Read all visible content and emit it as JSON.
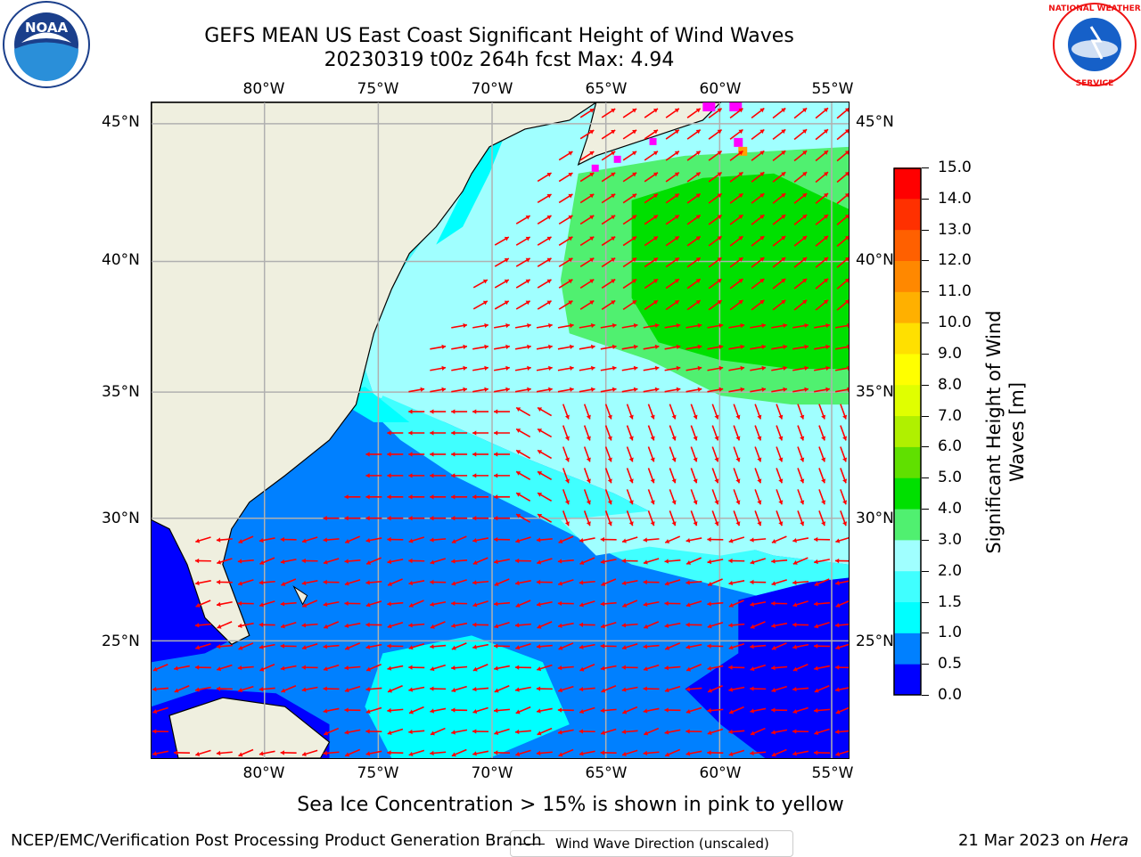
{
  "title": {
    "line1": "GEFS MEAN US East Coast Significant Height of Wind Waves",
    "line2": "20230319 t00z 264h fcst   Max: 4.94"
  },
  "logos": {
    "left": "NOAA",
    "right": "NATIONAL WEATHER SERVICE"
  },
  "map": {
    "lon_ticks": [
      "80°W",
      "75°W",
      "70°W",
      "65°W",
      "60°W",
      "55°W"
    ],
    "lat_ticks": [
      "45°N",
      "40°N",
      "35°N",
      "30°N",
      "25°N"
    ],
    "legend": "Wind Wave Direction (unscaled)",
    "colors": {
      "land": "#efefdf",
      "arrow": "#ff0000",
      "grid": "#b0b0b0"
    }
  },
  "colorbar": {
    "label_line1": "Significant Height of Wind",
    "label_line2": "Waves [m]",
    "ticks": [
      "15.0",
      "14.0",
      "13.0",
      "12.0",
      "11.0",
      "10.0",
      "9.0",
      "8.0",
      "7.0",
      "6.0",
      "5.0",
      "4.0",
      "3.0",
      "2.0",
      "1.5",
      "1.0",
      "0.5",
      "0.0"
    ],
    "colors_bottom_to_top": [
      "#0000ff",
      "#0080ff",
      "#00ffff",
      "#40ffff",
      "#a0ffff",
      "#50f070",
      "#00e000",
      "#60e000",
      "#b0f000",
      "#e0ff00",
      "#ffff00",
      "#ffe000",
      "#ffb000",
      "#ff8800",
      "#ff6000",
      "#ff3000",
      "#ff0000"
    ]
  },
  "note": "Sea Ice Concentration > 15% is shown in pink to yellow",
  "footer": {
    "left": "NCEP/EMC/Verification Post Processing Product Generation Branch",
    "right_date": "21 Mar 2023 on ",
    "right_machine": "Hera"
  }
}
